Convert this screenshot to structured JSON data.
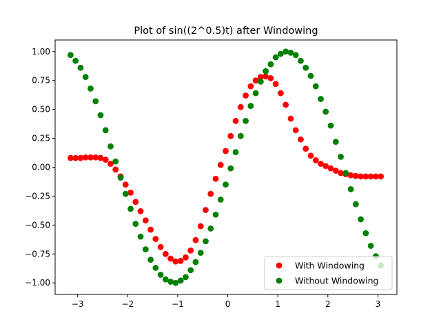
{
  "chart_data": {
    "type": "scatter",
    "title": "Plot of sin((2^0.5)t) after Windowing",
    "xlabel": "",
    "ylabel": "",
    "xlim": [
      -3.45,
      3.38
    ],
    "ylim": [
      -1.1,
      1.1
    ],
    "xticks": [
      -3,
      -2,
      -1,
      0,
      1,
      2,
      3
    ],
    "xtick_labels": [
      "−3",
      "−2",
      "−1",
      "0",
      "1",
      "2",
      "3"
    ],
    "yticks": [
      -1.0,
      -0.75,
      -0.5,
      -0.25,
      0.0,
      0.25,
      0.5,
      0.75,
      1.0
    ],
    "ytick_labels": [
      "−1.00",
      "−0.75",
      "−0.50",
      "−0.25",
      "0.00",
      "0.25",
      "0.50",
      "0.75",
      "1.00"
    ],
    "grid": false,
    "legend_position": "bottom-right",
    "x": [
      -3.1416,
      -3.0416,
      -2.9416,
      -2.8416,
      -2.7416,
      -2.6416,
      -2.5416,
      -2.4416,
      -2.3416,
      -2.2416,
      -2.1416,
      -2.0416,
      -1.9416,
      -1.8416,
      -1.7416,
      -1.6416,
      -1.5416,
      -1.4416,
      -1.3416,
      -1.2416,
      -1.1416,
      -1.0416,
      -0.9416,
      -0.8416,
      -0.7416,
      -0.6416,
      -0.5416,
      -0.4416,
      -0.3416,
      -0.2416,
      -0.1416,
      -0.0416,
      0.0584,
      0.1584,
      0.2584,
      0.3584,
      0.4584,
      0.5584,
      0.6584,
      0.7584,
      0.8584,
      0.9584,
      1.0584,
      1.1584,
      1.2584,
      1.3584,
      1.4584,
      1.5584,
      1.6584,
      1.7584,
      1.8584,
      1.9584,
      2.0584,
      2.1584,
      2.2584,
      2.3584,
      2.4584,
      2.5584,
      2.6584,
      2.7584,
      2.8584,
      2.9584,
      3.0584
    ],
    "series": [
      {
        "name": "With Windowing",
        "color": "#ff0000",
        "values": [
          0.08,
          0.08,
          0.08,
          0.085,
          0.085,
          0.085,
          0.08,
          0.065,
          0.03,
          -0.02,
          -0.08,
          -0.15,
          -0.22,
          -0.3,
          -0.38,
          -0.46,
          -0.54,
          -0.62,
          -0.69,
          -0.75,
          -0.79,
          -0.815,
          -0.81,
          -0.78,
          -0.72,
          -0.63,
          -0.51,
          -0.37,
          -0.23,
          -0.1,
          0.02,
          0.14,
          0.27,
          0.4,
          0.52,
          0.62,
          0.7,
          0.75,
          0.78,
          0.785,
          0.77,
          0.72,
          0.64,
          0.54,
          0.42,
          0.32,
          0.24,
          0.16,
          0.1,
          0.06,
          0.03,
          0.01,
          -0.01,
          -0.03,
          -0.05,
          -0.06,
          -0.07,
          -0.075,
          -0.08,
          -0.08,
          -0.08,
          -0.08,
          -0.08
        ]
      },
      {
        "name": "Without Windowing",
        "color": "#008000",
        "values": [
          0.97,
          0.92,
          0.86,
          0.78,
          0.68,
          0.57,
          0.45,
          0.32,
          0.18,
          0.05,
          -0.09,
          -0.23,
          -0.36,
          -0.49,
          -0.6,
          -0.71,
          -0.8,
          -0.87,
          -0.93,
          -0.97,
          -0.99,
          -1.0,
          -0.98,
          -0.95,
          -0.89,
          -0.82,
          -0.74,
          -0.64,
          -0.53,
          -0.41,
          -0.28,
          -0.15,
          -0.01,
          0.13,
          0.27,
          0.4,
          0.53,
          0.64,
          0.74,
          0.83,
          0.89,
          0.95,
          0.98,
          1.0,
          0.99,
          0.97,
          0.92,
          0.86,
          0.79,
          0.7,
          0.59,
          0.48,
          0.36,
          0.22,
          0.09,
          -0.05,
          -0.19,
          -0.32,
          -0.45,
          -0.57,
          -0.68,
          -0.77,
          -0.85
        ]
      }
    ]
  }
}
